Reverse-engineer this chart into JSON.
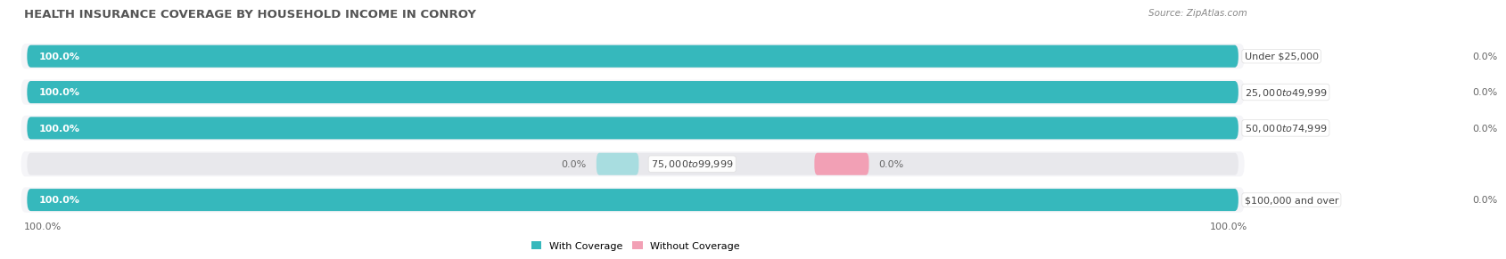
{
  "title": "HEALTH INSURANCE COVERAGE BY HOUSEHOLD INCOME IN CONROY",
  "source": "Source: ZipAtlas.com",
  "categories": [
    "Under $25,000",
    "$25,000 to $49,999",
    "$50,000 to $74,999",
    "$75,000 to $99,999",
    "$100,000 and over"
  ],
  "with_coverage": [
    100.0,
    100.0,
    100.0,
    0.0,
    100.0
  ],
  "without_coverage": [
    0.0,
    0.0,
    0.0,
    0.0,
    0.0
  ],
  "color_with": "#36b8bc",
  "color_with_light": "#a8dde0",
  "color_without": "#f2a0b5",
  "bar_bg_color": "#e8e8ec",
  "row_bg_color": "#f5f5f8",
  "background_color": "#ffffff",
  "title_fontsize": 9.5,
  "source_fontsize": 7.5,
  "label_fontsize": 8,
  "cat_fontsize": 8,
  "legend_fontsize": 8,
  "axis_label_left": "100.0%",
  "axis_label_right": "100.0%"
}
